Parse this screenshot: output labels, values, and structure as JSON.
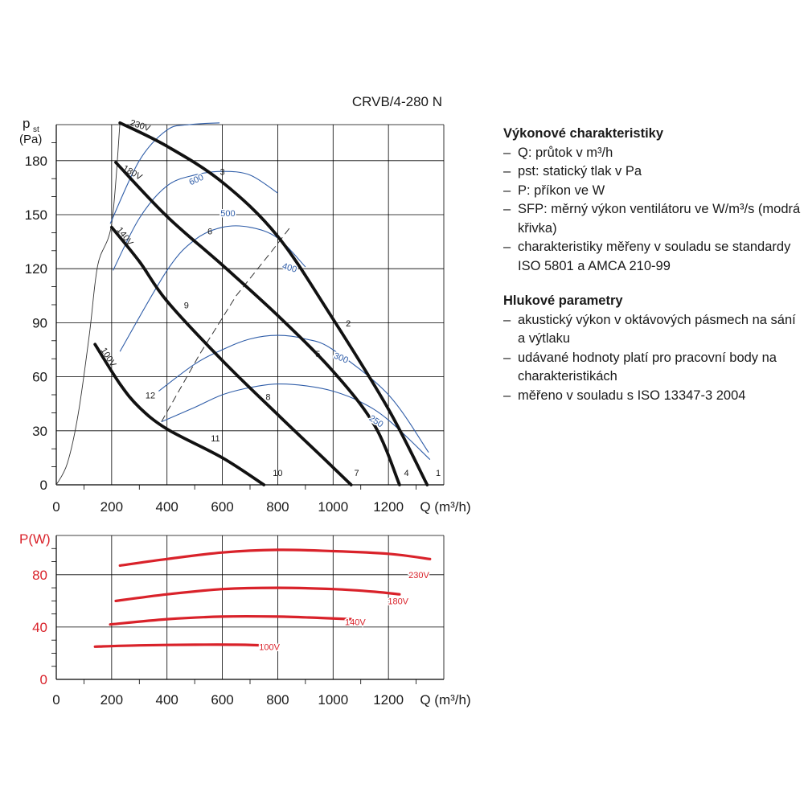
{
  "colors": {
    "fan_curve": "#111111",
    "sfp_curve": "#2f5da8",
    "power_curve": "#d9222a",
    "grid": "#000000",
    "axis_label_red": "#d9222a"
  },
  "chart_data": [
    {
      "type": "line",
      "title": "CRVB/4-280 N",
      "ylabel_main": "p",
      "ylabel_sub": "st",
      "ylabel_unit": "(Pa)",
      "xlabel": "Q (m³/h)",
      "xlim": [
        0,
        1400
      ],
      "ylim": [
        0,
        200
      ],
      "x_ticks": [
        "0",
        "200",
        "400",
        "600",
        "800",
        "1000",
        "1200"
      ],
      "y_ticks": [
        "0",
        "30",
        "60",
        "90",
        "120",
        "150",
        "180"
      ],
      "grid": true,
      "series": [
        {
          "name": "230V",
          "kind": "voltage",
          "points": [
            [
              230,
              201
            ],
            [
              400,
              188
            ],
            [
              600,
              168
            ],
            [
              800,
              138
            ],
            [
              1000,
              92
            ],
            [
              1200,
              42
            ],
            [
              1340,
              0
            ]
          ]
        },
        {
          "name": "180V",
          "kind": "voltage",
          "points": [
            [
              215,
              179
            ],
            [
              400,
              149
            ],
            [
              600,
              122
            ],
            [
              800,
              94
            ],
            [
              1000,
              63
            ],
            [
              1150,
              33
            ],
            [
              1240,
              0
            ]
          ]
        },
        {
          "name": "140V",
          "kind": "voltage",
          "points": [
            [
              200,
              143
            ],
            [
              300,
              124
            ],
            [
              400,
              102
            ],
            [
              600,
              69
            ],
            [
              800,
              39
            ],
            [
              950,
              17
            ],
            [
              1065,
              0
            ]
          ]
        },
        {
          "name": "100V",
          "kind": "voltage",
          "points": [
            [
              140,
              78
            ],
            [
              230,
              56
            ],
            [
              300,
              43
            ],
            [
              400,
              31
            ],
            [
              600,
              15
            ],
            [
              750,
              0
            ]
          ]
        },
        {
          "name": "600",
          "kind": "sfp",
          "points": [
            [
              195,
              145
            ],
            [
              300,
              180
            ],
            [
              400,
              197
            ],
            [
              480,
              200
            ],
            [
              590,
              201
            ]
          ]
        },
        {
          "name": "500",
          "kind": "sfp",
          "points": [
            [
              205,
              119
            ],
            [
              300,
              148
            ],
            [
              400,
              166
            ],
            [
              500,
              172
            ],
            [
              600,
              174
            ],
            [
              700,
              172
            ],
            [
              800,
              162
            ]
          ]
        },
        {
          "name": "400",
          "kind": "sfp",
          "points": [
            [
              230,
              74
            ],
            [
              400,
              119
            ],
            [
              500,
              136
            ],
            [
              600,
              143
            ],
            [
              700,
              143
            ],
            [
              800,
              137
            ],
            [
              900,
              121
            ]
          ]
        },
        {
          "name": "300",
          "kind": "sfp",
          "points": [
            [
              370,
              52
            ],
            [
              500,
              67
            ],
            [
              600,
              75
            ],
            [
              700,
              81
            ],
            [
              800,
              83
            ],
            [
              900,
              81
            ],
            [
              1000,
              75
            ],
            [
              1200,
              50
            ],
            [
              1345,
              18
            ]
          ]
        },
        {
          "name": "250",
          "kind": "sfp",
          "points": [
            [
              380,
              35
            ],
            [
              500,
              43
            ],
            [
              600,
              50
            ],
            [
              700,
              54
            ],
            [
              800,
              56
            ],
            [
              900,
              55
            ],
            [
              1000,
              52
            ],
            [
              1100,
              46
            ],
            [
              1200,
              36
            ],
            [
              1350,
              14
            ]
          ]
        }
      ],
      "left_envelope": [
        [
          0,
          0
        ],
        [
          40,
          12
        ],
        [
          80,
          40
        ],
        [
          120,
          84
        ],
        [
          150,
          122
        ],
        [
          200,
          145
        ],
        [
          230,
          201
        ]
      ],
      "system_line": [
        [
          380,
          35
        ],
        [
          520,
          73
        ],
        [
          650,
          105
        ],
        [
          780,
          130
        ],
        [
          850,
          144
        ]
      ],
      "point_labels": [
        {
          "text": "1",
          "x": 1380,
          "y": 5
        },
        {
          "text": "2",
          "x": 1055,
          "y": 88
        },
        {
          "text": "3",
          "x": 600,
          "y": 172
        },
        {
          "text": "4",
          "x": 1265,
          "y": 5
        },
        {
          "text": "5",
          "x": 945,
          "y": 71
        },
        {
          "text": "6",
          "x": 555,
          "y": 139
        },
        {
          "text": "7",
          "x": 1085,
          "y": 5
        },
        {
          "text": "8",
          "x": 765,
          "y": 47
        },
        {
          "text": "9",
          "x": 470,
          "y": 98
        },
        {
          "text": "10",
          "x": 800,
          "y": 5
        },
        {
          "text": "11",
          "x": 575,
          "y": 24
        },
        {
          "text": "12",
          "x": 340,
          "y": 48
        }
      ],
      "curve_labels": [
        {
          "text": "230V",
          "x": 300,
          "y": 198,
          "angle": 18
        },
        {
          "text": "180V",
          "x": 270,
          "y": 172,
          "angle": 30
        },
        {
          "text": "140V",
          "x": 240,
          "y": 137,
          "angle": 52
        },
        {
          "text": "100V",
          "x": 180,
          "y": 70,
          "angle": 58
        },
        {
          "text": "600",
          "x": 510,
          "y": 168,
          "angle": -25
        },
        {
          "text": "500",
          "x": 620,
          "y": 149,
          "angle": 0
        },
        {
          "text": "400",
          "x": 840,
          "y": 119,
          "angle": 16
        },
        {
          "text": "300",
          "x": 1025,
          "y": 69,
          "angle": 22
        },
        {
          "text": "250",
          "x": 1150,
          "y": 34,
          "angle": 34
        }
      ]
    },
    {
      "type": "line",
      "ylabel": "P(W)",
      "xlabel": "Q (m³/h)",
      "xlim": [
        0,
        1400
      ],
      "ylim": [
        0,
        110
      ],
      "x_ticks": [
        "0",
        "200",
        "400",
        "600",
        "800",
        "1000",
        "1200"
      ],
      "y_ticks": [
        "0",
        "40",
        "80"
      ],
      "grid": true,
      "series": [
        {
          "name": "230V",
          "points": [
            [
              230,
              87
            ],
            [
              400,
              92
            ],
            [
              600,
              97
            ],
            [
              800,
              99
            ],
            [
              1000,
              98
            ],
            [
              1200,
              96
            ],
            [
              1350,
              92
            ]
          ]
        },
        {
          "name": "180V",
          "points": [
            [
              215,
              60
            ],
            [
              400,
              65
            ],
            [
              600,
              69
            ],
            [
              800,
              70
            ],
            [
              1000,
              69
            ],
            [
              1150,
              67
            ],
            [
              1240,
              65
            ]
          ]
        },
        {
          "name": "140V",
          "points": [
            [
              195,
              42
            ],
            [
              400,
              46
            ],
            [
              600,
              48
            ],
            [
              800,
              48
            ],
            [
              950,
              47
            ],
            [
              1065,
              46
            ]
          ]
        },
        {
          "name": "100V",
          "points": [
            [
              140,
              25
            ],
            [
              300,
              26
            ],
            [
              500,
              26.5
            ],
            [
              650,
              26.5
            ],
            [
              750,
              26
            ]
          ]
        }
      ],
      "curve_labels": [
        {
          "text": "230V",
          "x": 1310,
          "y": 80
        },
        {
          "text": "180V",
          "x": 1235,
          "y": 60
        },
        {
          "text": "140V",
          "x": 1080,
          "y": 44
        },
        {
          "text": "100V",
          "x": 770,
          "y": 25
        }
      ]
    }
  ],
  "notes": {
    "performance_heading": "Výkonové charakteristiky",
    "performance_items": [
      "Q: průtok v m³/h",
      "pst: statický tlak v Pa",
      "P: příkon ve W",
      "SFP: měrný výkon ventilátoru ve W/m³/s (modrá křivka)",
      "charakteristiky měřeny v souladu se standardy ISO 5801 a AMCA 210-99"
    ],
    "noise_heading": "Hlukové parametry",
    "noise_items": [
      "akustický výkon v oktávových pásmech na sání a výtlaku",
      "udávané hodnoty platí pro pracovní body na charakteristikách",
      "měřeno v souladu s ISO 13347-3 2004"
    ]
  }
}
